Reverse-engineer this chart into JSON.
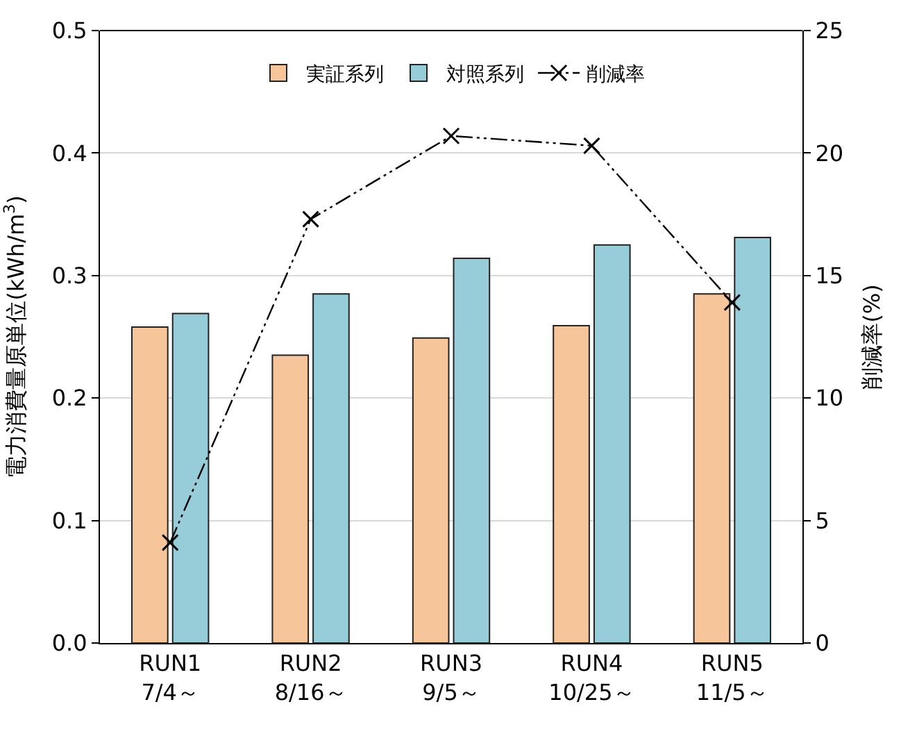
{
  "chart_data": {
    "type": "bar",
    "categories": [
      "RUN1\n7/4～",
      "RUN2\n8/16～",
      "RUN3\n9/5～",
      "RUN4\n10/25～",
      "RUN5\n11/5～"
    ],
    "series": [
      {
        "name": "実証系列",
        "color": "#f7c59a",
        "values": [
          0.258,
          0.235,
          0.249,
          0.259,
          0.285
        ]
      },
      {
        "name": "対照系列",
        "color": "#96cdd8",
        "values": [
          0.269,
          0.285,
          0.314,
          0.325,
          0.331
        ]
      },
      {
        "name": "削減率",
        "type": "line",
        "axis": "y2",
        "color": "#000000",
        "marker": "cross",
        "line_style": "dashed",
        "values": [
          4.1,
          17.3,
          20.7,
          20.3,
          13.9
        ]
      }
    ],
    "ylabel": "電力消費量原単位(kWh/m$^{3}$)",
    "y2label": "削減率(%)",
    "ylim": [
      0,
      0.5
    ],
    "yticks": [
      {
        "value": 0,
        "label": "0.0"
      },
      0.1,
      0.2,
      0.3,
      0.4,
      0.5
    ],
    "y2lim": [
      0,
      25
    ],
    "y2ticks": [
      0,
      5,
      10,
      15,
      20,
      25
    ],
    "grid": "y",
    "legend": "top"
  }
}
